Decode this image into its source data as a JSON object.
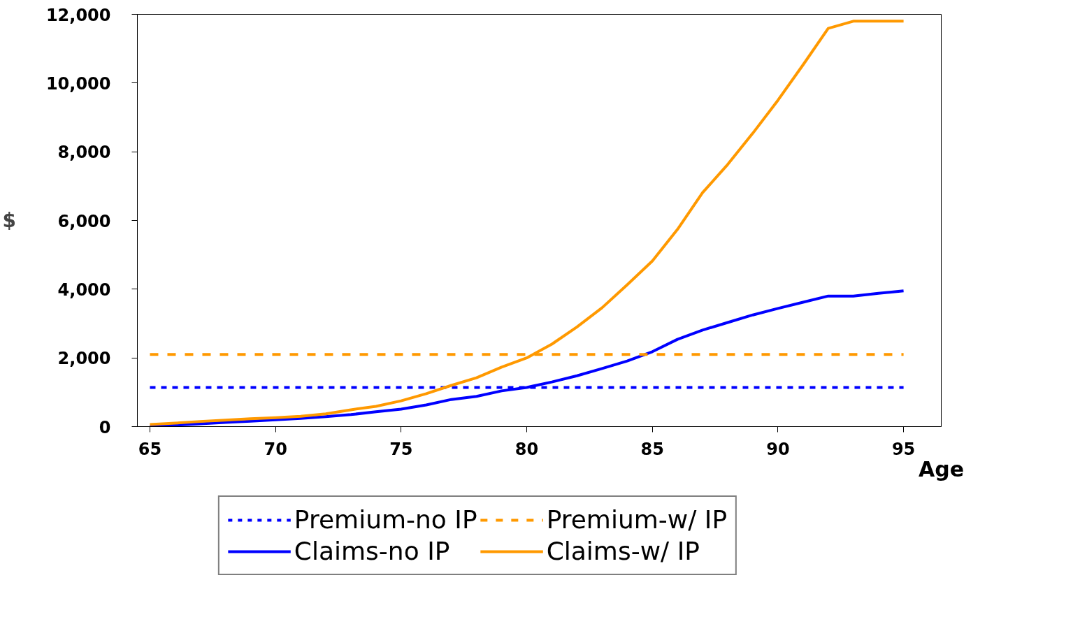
{
  "chart_data": {
    "type": "line",
    "xlabel": "Age",
    "ylabel": "$",
    "x": [
      65,
      66,
      67,
      68,
      69,
      70,
      71,
      72,
      73,
      74,
      75,
      76,
      77,
      78,
      79,
      80,
      81,
      82,
      83,
      84,
      85,
      86,
      87,
      88,
      89,
      90,
      91,
      92,
      93,
      94,
      95
    ],
    "xlim": [
      64.5,
      96.5
    ],
    "xticks": [
      65,
      70,
      75,
      80,
      85,
      90,
      95
    ],
    "ylim": [
      0,
      12000
    ],
    "yticks": [
      {
        "value": 0,
        "label": "0"
      },
      {
        "value": 2000,
        "label": "2,000"
      },
      {
        "value": 4000,
        "label": "4,000"
      },
      {
        "value": 6000,
        "label": "6,000"
      },
      {
        "value": 8000,
        "label": "8,000"
      },
      {
        "value": 10000,
        "label": "10,000"
      },
      {
        "value": 12000,
        "label": "12,000"
      }
    ],
    "grid": false,
    "legend": "bottom",
    "marker": "none",
    "series": [
      {
        "name": "Premium-no IP",
        "color": "#0000ff",
        "line_style": "dotted",
        "values": [
          1140,
          1140,
          1140,
          1140,
          1140,
          1140,
          1140,
          1140,
          1140,
          1140,
          1140,
          1140,
          1140,
          1140,
          1140,
          1140,
          1140,
          1140,
          1140,
          1140,
          1140,
          1140,
          1140,
          1140,
          1140,
          1140,
          1140,
          1140,
          1140,
          1140,
          1140
        ]
      },
      {
        "name": "Claims-no IP",
        "color": "#0000ff",
        "line_style": "solid",
        "values": [
          10,
          40,
          80,
          120,
          160,
          200,
          240,
          290,
          350,
          430,
          510,
          630,
          790,
          880,
          1040,
          1140,
          1300,
          1480,
          1690,
          1910,
          2180,
          2540,
          2810,
          3030,
          3250,
          3440,
          3620,
          3800,
          3800,
          3880,
          3950
        ]
      },
      {
        "name": "Premium-w/ IP",
        "color": "#ff9900",
        "line_style": "dashed",
        "values": [
          2100,
          2100,
          2100,
          2100,
          2100,
          2100,
          2100,
          2100,
          2100,
          2100,
          2100,
          2100,
          2100,
          2100,
          2100,
          2100,
          2100,
          2100,
          2100,
          2100,
          2100,
          2100,
          2100,
          2100,
          2100,
          2100,
          2100,
          2100,
          2100,
          2100,
          2100
        ]
      },
      {
        "name": "Claims-w/ IP",
        "color": "#ff9900",
        "line_style": "solid",
        "values": [
          60,
          100,
          150,
          190,
          230,
          260,
          300,
          370,
          490,
          590,
          750,
          960,
          1200,
          1420,
          1730,
          2000,
          2400,
          2900,
          3460,
          4130,
          4820,
          5740,
          6810,
          7630,
          8540,
          9500,
          10530,
          11590,
          11800,
          11800,
          11800
        ]
      }
    ]
  }
}
